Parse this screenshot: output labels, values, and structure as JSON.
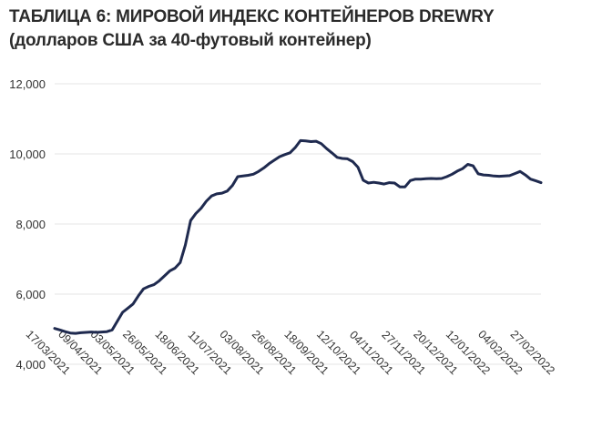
{
  "chart_data": {
    "type": "line",
    "title": "ТАБЛИЦА 6: МИРОВОЙ ИНДЕКС КОНТЕЙНЕРОВ DREWRY",
    "subtitle": "(долларов США за 40-футовый контейнер)",
    "xlabel": "",
    "ylabel": "",
    "ylim": [
      4000,
      12000
    ],
    "yticks": [
      "4,000",
      "6,000",
      "8,000",
      "10,000",
      "12,000"
    ],
    "ytick_values": [
      4000,
      6000,
      8000,
      10000,
      12000
    ],
    "grid": true,
    "line_color": "#1f2a4f",
    "x_tick_labels": [
      "17/03/2021",
      "09/04/2021",
      "03/05/2021",
      "26/05/2021",
      "18/06/2021",
      "11/07/2021",
      "03/08/2021",
      "26/08/2021",
      "18/09/2021",
      "12/10/2021",
      "04/11/2021",
      "27/11/2021",
      "20/12/2021",
      "12/01/2022",
      "04/02/2022",
      "27/02/2022"
    ],
    "series": [
      {
        "values": [
          5020,
          4980,
          4930,
          4890,
          4880,
          4900,
          4910,
          4920,
          4910,
          4920,
          4930,
          4980,
          5230,
          5480,
          5600,
          5720,
          5950,
          6150,
          6220,
          6270,
          6380,
          6520,
          6660,
          6740,
          6900,
          7400,
          8100,
          8300,
          8450,
          8650,
          8800,
          8860,
          8880,
          8940,
          9100,
          9350,
          9370,
          9390,
          9420,
          9500,
          9600,
          9720,
          9820,
          9920,
          9980,
          10030,
          10180,
          10380,
          10370,
          10350,
          10360,
          10290,
          10150,
          10030,
          9900,
          9870,
          9860,
          9780,
          9620,
          9250,
          9170,
          9190,
          9170,
          9140,
          9180,
          9170,
          9060,
          9060,
          9240,
          9280,
          9280,
          9290,
          9300,
          9290,
          9300,
          9350,
          9420,
          9510,
          9580,
          9700,
          9660,
          9430,
          9400,
          9390,
          9370,
          9360,
          9370,
          9380,
          9440,
          9500,
          9400,
          9280,
          9230,
          9180
        ]
      }
    ]
  }
}
